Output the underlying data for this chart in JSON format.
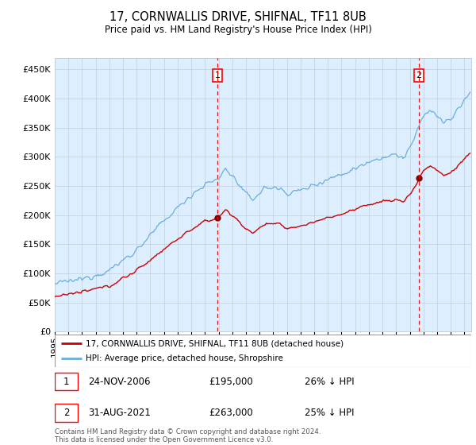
{
  "title": "17, CORNWALLIS DRIVE, SHIFNAL, TF11 8UB",
  "subtitle": "Price paid vs. HM Land Registry's House Price Index (HPI)",
  "legend_line1": "17, CORNWALLIS DRIVE, SHIFNAL, TF11 8UB (detached house)",
  "legend_line2": "HPI: Average price, detached house, Shropshire",
  "sale1_date": "24-NOV-2006",
  "sale1_price": 195000,
  "sale1_label": "26% ↓ HPI",
  "sale2_date": "31-AUG-2021",
  "sale2_price": 263000,
  "sale2_label": "25% ↓ HPI",
  "footer": "Contains HM Land Registry data © Crown copyright and database right 2024.\nThis data is licensed under the Open Government Licence v3.0.",
  "hpi_color": "#6baed6",
  "price_color": "#cc0000",
  "marker_color": "#8b0000",
  "bg_color": "#ddeeff",
  "grid_color": "#c0cfe0",
  "sale1_x": 2006.9,
  "sale2_x": 2021.67,
  "ylim": [
    0,
    470000
  ],
  "yticks": [
    0,
    50000,
    100000,
    150000,
    200000,
    250000,
    300000,
    350000,
    400000,
    450000
  ]
}
